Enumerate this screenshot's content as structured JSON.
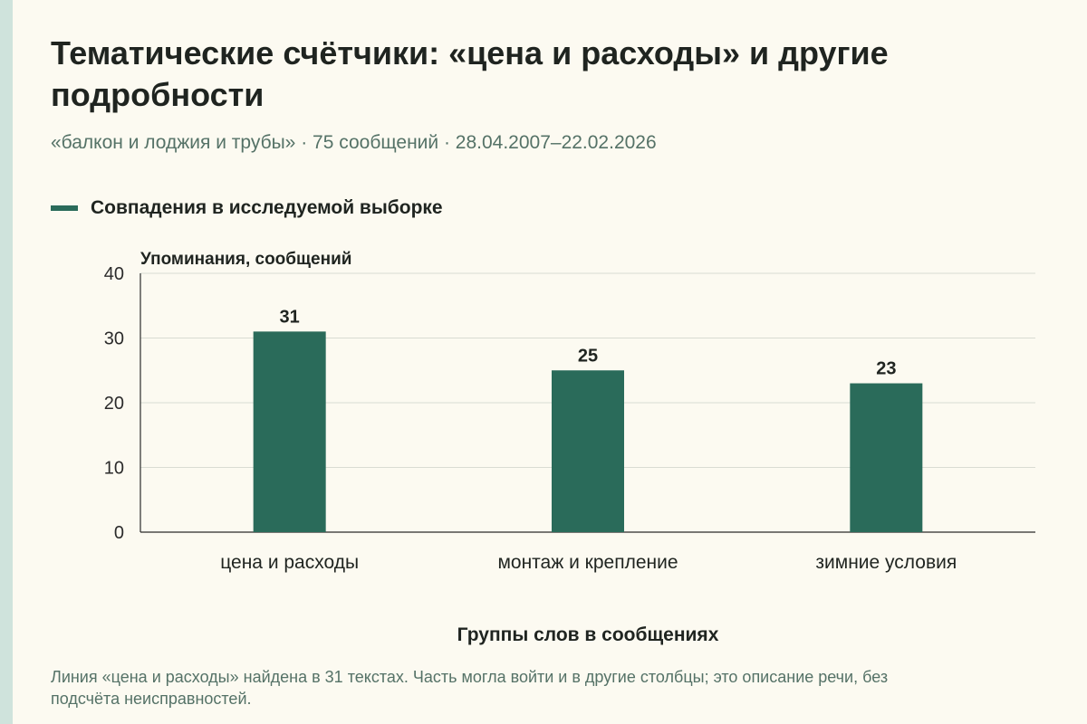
{
  "title": "Тематические счётчики: «цена и расходы» и другие подробности",
  "subtitle": "«балкон и лоджия и трубы» · 75 сообщений · 28.04.2007–22.02.2026",
  "footnote": "Линия «цена и расходы» найдена в 31 текстах. Часть могла войти и в другие столбцы; это описание речи, без подсчёта неисправностей.",
  "colors": {
    "bar": "#2a6b5a",
    "background": "#fcfaf1",
    "grid": "#d9dcd3",
    "axis": "#2b2b2b",
    "muted_text": "#557267"
  },
  "chart_data": {
    "type": "bar",
    "categories": [
      "цена и расходы",
      "монтаж и крепление",
      "зимние условия"
    ],
    "series": [
      {
        "name": "Совпадения в исследуемой выборке",
        "values": [
          31,
          25,
          23
        ]
      }
    ],
    "ylabel": "Упоминания, сообщений",
    "xlabel": "Группы слов в сообщениях",
    "ylim": [
      0,
      40
    ],
    "yticks": [
      0,
      10,
      20,
      30,
      40
    ],
    "grid": true,
    "legend": "top-left",
    "data_labels": true
  }
}
